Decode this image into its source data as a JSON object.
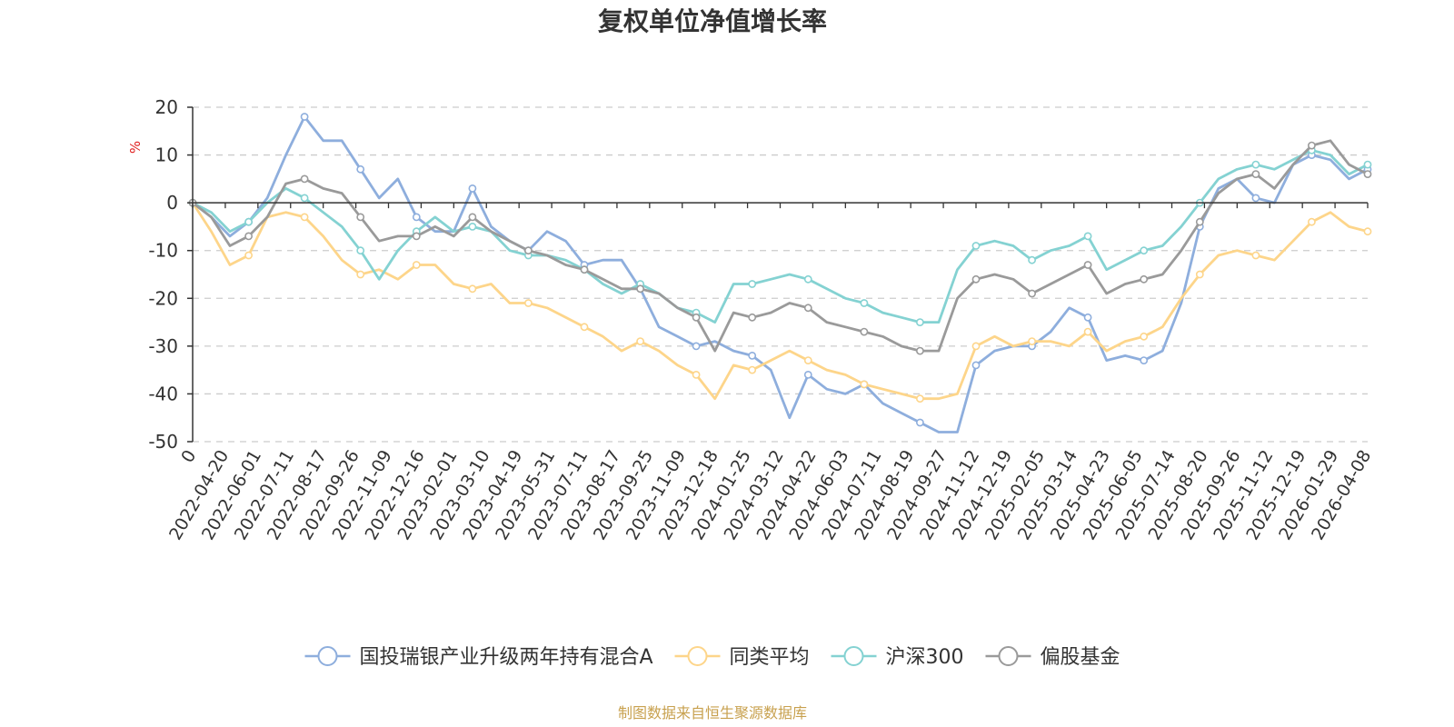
{
  "chart_data": {
    "type": "line",
    "title": "复权单位净值增长率",
    "ylabel": "%",
    "ylim": [
      -50,
      20
    ],
    "yticks": [
      -50,
      -40,
      -30,
      -20,
      -10,
      0,
      10,
      20
    ],
    "x_tick_labels": [
      "0",
      "2022-04-20",
      "2022-06-01",
      "2022-07-11",
      "2022-08-17",
      "2022-09-26",
      "2022-11-09",
      "2022-12-16",
      "2023-02-01",
      "2023-03-10",
      "2023-04-19",
      "2023-05-31",
      "2023-07-11",
      "2023-08-17",
      "2023-09-25",
      "2023-11-09",
      "2023-12-18",
      "2024-01-25",
      "2024-03-12",
      "2024-04-22",
      "2024-06-03",
      "2024-07-11",
      "2024-08-19",
      "2024-09-27",
      "2024-11-12",
      "2024-12-19",
      "2025-02-05",
      "2025-03-14",
      "2025-04-23",
      "2025-06-05",
      "2025-07-14",
      "2025-08-20",
      "2025-09-26",
      "2025-11-12",
      "2025-12-19",
      "2026-01-29",
      "2026-04-08"
    ],
    "legend_position": "bottom",
    "grid": true,
    "series": [
      {
        "name": "国投瑞银产业升级两年持有混合A",
        "color": "#8eaedd",
        "values": [
          0,
          -3,
          -7,
          -4,
          1,
          10,
          18,
          13,
          13,
          7,
          1,
          5,
          -3,
          -6,
          -6,
          3,
          -5,
          -8,
          -10,
          -6,
          -8,
          -13,
          -12,
          -12,
          -18,
          -26,
          -28,
          -30,
          -29,
          -31,
          -32,
          -35,
          -45,
          -36,
          -39,
          -40,
          -38,
          -42,
          -44,
          -46,
          -48,
          -48,
          -34,
          -31,
          -30,
          -30,
          -27,
          -22,
          -24,
          -33,
          -32,
          -33,
          -31,
          -21,
          -5,
          3,
          5,
          1,
          0,
          8,
          10,
          9,
          5,
          7
        ]
      },
      {
        "name": "同类平均",
        "color": "#fdd58a",
        "values": [
          0,
          -6,
          -13,
          -11,
          -3,
          -2,
          -3,
          -7,
          -12,
          -15,
          -14,
          -16,
          -13,
          -13,
          -17,
          -18,
          -17,
          -21,
          -21,
          -22,
          -24,
          -26,
          -28,
          -31,
          -29,
          -31,
          -34,
          -36,
          -41,
          -34,
          -35,
          -33,
          -31,
          -33,
          -35,
          -36,
          -38,
          -39,
          -40,
          -41,
          -41,
          -40,
          -30,
          -28,
          -30,
          -29,
          -29,
          -30,
          -27,
          -31,
          -29,
          -28,
          -26,
          -20,
          -15,
          -11,
          -10,
          -11,
          -12,
          -8,
          -4,
          -2,
          -5,
          -6
        ]
      },
      {
        "name": "沪深300",
        "color": "#84d2d2",
        "values": [
          0,
          -2,
          -6,
          -4,
          0,
          3,
          1,
          -2,
          -5,
          -10,
          -16,
          -10,
          -6,
          -3,
          -6,
          -5,
          -6,
          -10,
          -11,
          -11,
          -12,
          -14,
          -17,
          -19,
          -17,
          -19,
          -22,
          -23,
          -25,
          -17,
          -17,
          -16,
          -15,
          -16,
          -18,
          -20,
          -21,
          -23,
          -24,
          -25,
          -25,
          -14,
          -9,
          -8,
          -9,
          -12,
          -10,
          -9,
          -7,
          -14,
          -12,
          -10,
          -9,
          -5,
          0,
          5,
          7,
          8,
          7,
          9,
          11,
          10,
          6,
          8
        ]
      },
      {
        "name": "偏股基金",
        "color": "#9a9a9a",
        "values": [
          0,
          -3,
          -9,
          -7,
          -3,
          4,
          5,
          3,
          2,
          -3,
          -8,
          -7,
          -7,
          -5,
          -7,
          -3,
          -6,
          -8,
          -10,
          -11,
          -13,
          -14,
          -16,
          -18,
          -18,
          -19,
          -22,
          -24,
          -31,
          -23,
          -24,
          -23,
          -21,
          -22,
          -25,
          -26,
          -27,
          -28,
          -30,
          -31,
          -31,
          -20,
          -16,
          -15,
          -16,
          -19,
          -17,
          -15,
          -13,
          -19,
          -17,
          -16,
          -15,
          -10,
          -4,
          2,
          5,
          6,
          3,
          8,
          12,
          13,
          8,
          6
        ]
      }
    ]
  },
  "source_text": "制图数据来自恒生聚源数据库",
  "colors": {
    "source_text": "#c8a14f",
    "unit_label": "#e02020",
    "axis": "#333333",
    "grid": "#cccccc"
  }
}
